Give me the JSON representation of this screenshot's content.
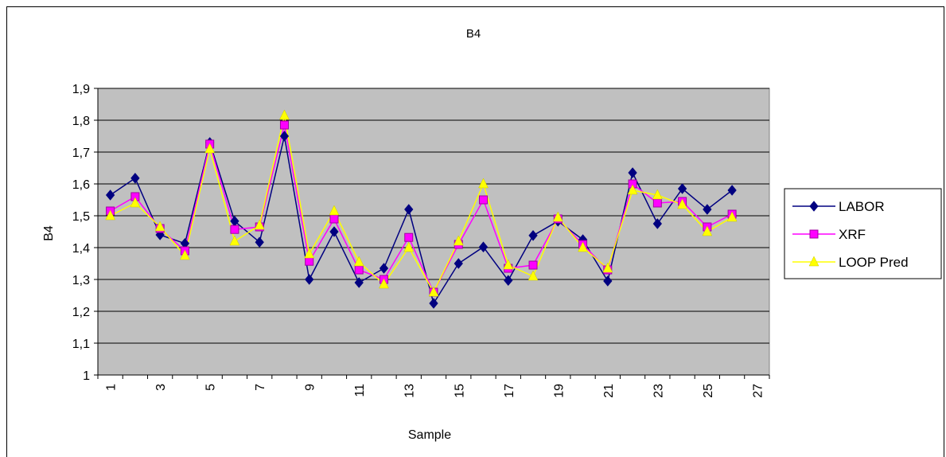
{
  "chart_data": {
    "type": "line",
    "title": "B4",
    "xlabel": "Sample",
    "ylabel": "B4",
    "ylim": [
      1,
      1.9
    ],
    "y_ticks": [
      "1",
      "1,1",
      "1,2",
      "1,3",
      "1,4",
      "1,5",
      "1,6",
      "1,7",
      "1,8",
      "1,9"
    ],
    "x_tick_labels": [
      "1",
      "3",
      "5",
      "7",
      "9",
      "11",
      "13",
      "15",
      "17",
      "19",
      "21",
      "23",
      "25",
      "27"
    ],
    "x": [
      1,
      2,
      3,
      4,
      5,
      6,
      7,
      8,
      9,
      10,
      11,
      12,
      13,
      14,
      15,
      16,
      17,
      18,
      19,
      20,
      21,
      22,
      23,
      24,
      25,
      26
    ],
    "grid": "horizontal",
    "legend_position": "right",
    "plot_background": "#c0c0c0",
    "series": [
      {
        "name": "LABOR",
        "color": "#000080",
        "marker": "diamond",
        "values": [
          1.565,
          1.618,
          1.44,
          1.413,
          1.73,
          1.483,
          1.417,
          1.75,
          1.3,
          1.45,
          1.29,
          1.335,
          1.52,
          1.225,
          1.35,
          1.402,
          1.297,
          1.438,
          1.483,
          1.425,
          1.295,
          1.635,
          1.475,
          1.585,
          1.52,
          1.58
        ]
      },
      {
        "name": "XRF",
        "color": "#ff00ff",
        "marker": "square",
        "values": [
          1.515,
          1.56,
          1.46,
          1.39,
          1.725,
          1.457,
          1.465,
          1.785,
          1.357,
          1.49,
          1.33,
          1.3,
          1.432,
          1.26,
          1.41,
          1.55,
          1.335,
          1.345,
          1.49,
          1.41,
          1.33,
          1.6,
          1.54,
          1.545,
          1.465,
          1.505
        ]
      },
      {
        "name": "LOOP Pred",
        "color": "#ffff00",
        "marker": "triangle",
        "values": [
          1.5,
          1.54,
          1.465,
          1.375,
          1.71,
          1.42,
          1.47,
          1.815,
          1.38,
          1.515,
          1.355,
          1.285,
          1.4,
          1.26,
          1.42,
          1.6,
          1.345,
          1.31,
          1.495,
          1.4,
          1.335,
          1.58,
          1.565,
          1.535,
          1.45,
          1.495
        ]
      }
    ]
  }
}
